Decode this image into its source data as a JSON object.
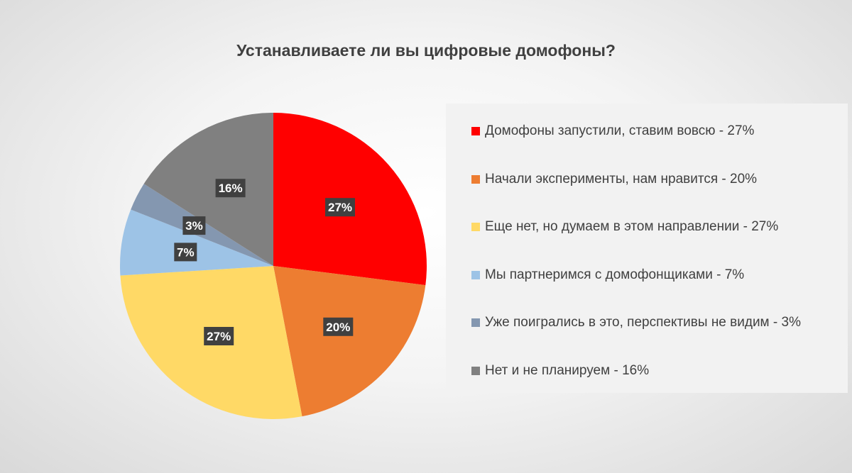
{
  "chart_data": {
    "type": "pie",
    "title": "Устанавливаете ли вы цифровые домофоны?",
    "slices": [
      {
        "label": "Домофоны запустили, ставим вовсю - 27%",
        "value": 27,
        "data_label": "27%",
        "color": "#ff0000"
      },
      {
        "label": "Начали эксперименты, нам нравится - 20%",
        "value": 20,
        "data_label": "20%",
        "color": "#ed7d31"
      },
      {
        "label": "Еще нет, но думаем в этом направлении - 27%",
        "value": 27,
        "data_label": "27%",
        "color": "#ffd966"
      },
      {
        "label": "Мы партнеримся с домофонщиками - 7%",
        "value": 7,
        "data_label": "7%",
        "color": "#9dc3e6"
      },
      {
        "label": "Уже поигрались в это, перспективы не видим - 3%",
        "value": 3,
        "data_label": "3%",
        "color": "#8497b0"
      },
      {
        "label": "Нет и не планируем - 16%",
        "value": 16,
        "data_label": "16%",
        "color": "#808080"
      }
    ],
    "legend_position": "right",
    "start_angle": "12 o'clock",
    "direction": "clockwise"
  }
}
